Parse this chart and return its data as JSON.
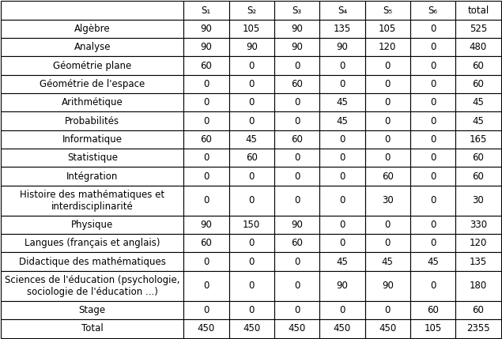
{
  "columns": [
    "S₁",
    "S₂",
    "S₃",
    "S₄",
    "S₅",
    "S₆",
    "total"
  ],
  "rows": [
    {
      "label": "Algèbre",
      "values": [
        90,
        105,
        90,
        135,
        105,
        0,
        525
      ]
    },
    {
      "label": "Analyse",
      "values": [
        90,
        90,
        90,
        90,
        120,
        0,
        480
      ]
    },
    {
      "label": "Géométrie plane",
      "values": [
        60,
        0,
        0,
        0,
        0,
        0,
        60
      ]
    },
    {
      "label": "Géométrie de l'espace",
      "values": [
        0,
        0,
        60,
        0,
        0,
        0,
        60
      ]
    },
    {
      "label": "Arithmétique",
      "values": [
        0,
        0,
        0,
        45,
        0,
        0,
        45
      ]
    },
    {
      "label": "Probabilités",
      "values": [
        0,
        0,
        0,
        45,
        0,
        0,
        45
      ]
    },
    {
      "label": "Informatique",
      "values": [
        60,
        45,
        60,
        0,
        0,
        0,
        165
      ]
    },
    {
      "label": "Statistique",
      "values": [
        0,
        60,
        0,
        0,
        0,
        0,
        60
      ]
    },
    {
      "label": "Intégration",
      "values": [
        0,
        0,
        0,
        0,
        60,
        0,
        60
      ]
    },
    {
      "label": "Histoire des mathématiques et\ninterdisciplinarité",
      "values": [
        0,
        0,
        0,
        0,
        30,
        0,
        30
      ]
    },
    {
      "label": "Physique",
      "values": [
        90,
        150,
        90,
        0,
        0,
        0,
        330
      ]
    },
    {
      "label": "Langues (français et anglais)",
      "values": [
        60,
        0,
        60,
        0,
        0,
        0,
        120
      ]
    },
    {
      "label": "Didactique des mathématiques",
      "values": [
        0,
        0,
        0,
        45,
        45,
        45,
        135
      ]
    },
    {
      "label": "Sciences de l'éducation (psychologie,\nsociologie de l'éducation ...)",
      "values": [
        0,
        0,
        0,
        90,
        90,
        0,
        180
      ]
    },
    {
      "label": "Stage",
      "values": [
        0,
        0,
        0,
        0,
        0,
        60,
        60
      ]
    },
    {
      "label": "Total",
      "values": [
        450,
        450,
        450,
        450,
        450,
        105,
        2355
      ]
    }
  ],
  "header_bg": "#ffffff",
  "cell_bg": "#ffffff",
  "border_color": "#000000",
  "text_color": "#000000",
  "font_size": 8.5,
  "header_font_size": 8.5
}
